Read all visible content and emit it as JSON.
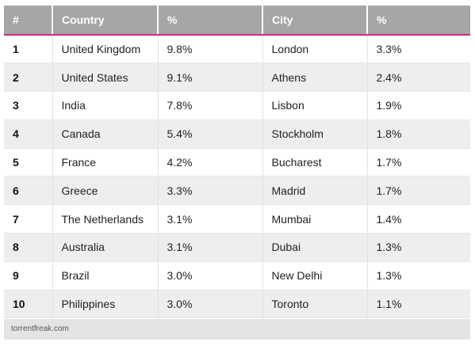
{
  "table": {
    "headers": [
      "#",
      "Country",
      "%",
      "City",
      "%"
    ],
    "rows": [
      [
        "1",
        "United Kingdom",
        "9.8%",
        "London",
        "3.3%"
      ],
      [
        "2",
        "United States",
        "9.1%",
        "Athens",
        "2.4%"
      ],
      [
        "3",
        "India",
        "7.8%",
        "Lisbon",
        "1.9%"
      ],
      [
        "4",
        "Canada",
        "5.4%",
        "Stockholm",
        "1.8%"
      ],
      [
        "5",
        "France",
        "4.2%",
        "Bucharest",
        "1.7%"
      ],
      [
        "6",
        "Greece",
        "3.3%",
        "Madrid",
        "1.7%"
      ],
      [
        "7",
        "The Netherlands",
        "3.1%",
        "Mumbai",
        "1.4%"
      ],
      [
        "8",
        "Australia",
        "3.1%",
        "Dubai",
        "1.3%"
      ],
      [
        "9",
        "Brazil",
        "3.0%",
        "New Delhi",
        "1.3%"
      ],
      [
        "10",
        "Philippines",
        "3.0%",
        "Toronto",
        "1.1%"
      ]
    ]
  },
  "footer": {
    "source": "torrentfreak.com"
  },
  "colors": {
    "header_bg": "#a6a6a6",
    "header_rule": "#c4327f",
    "stripe": "#eeeeee"
  }
}
